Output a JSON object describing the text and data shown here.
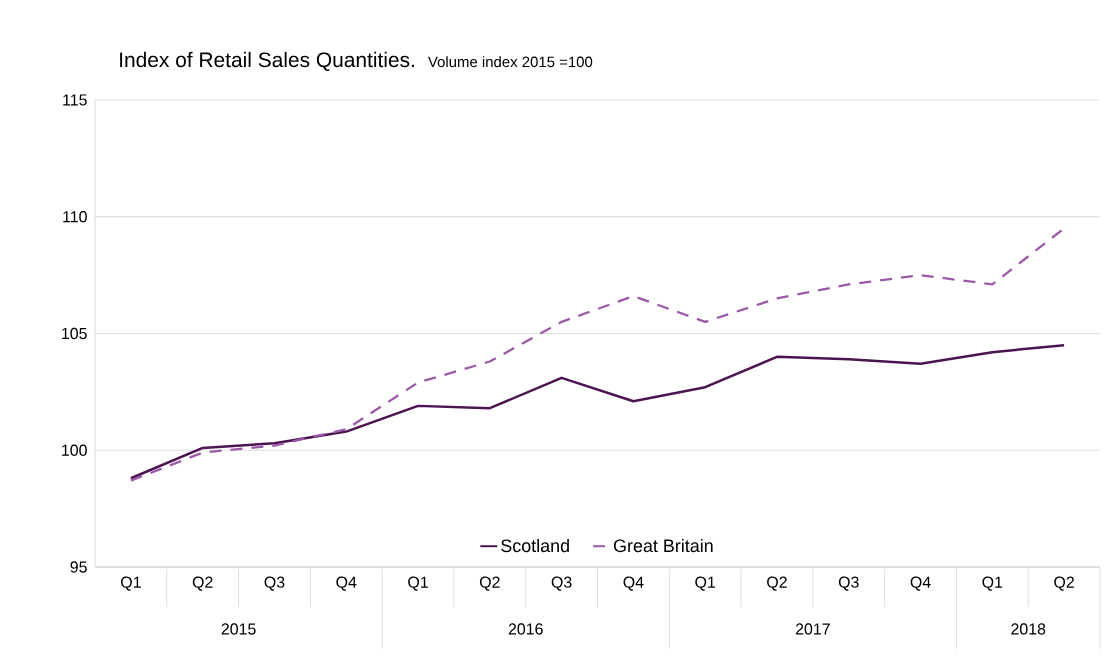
{
  "chart_data": {
    "type": "line",
    "title": "Index of Retail Sales Quantities.",
    "subtitle": "Volume index 2015 =100",
    "categories": [
      "Q1",
      "Q2",
      "Q3",
      "Q4",
      "Q1",
      "Q2",
      "Q3",
      "Q4",
      "Q1",
      "Q2",
      "Q3",
      "Q4",
      "Q1",
      "Q2"
    ],
    "annotations": [
      "2015",
      "2016",
      "2017",
      "2018"
    ],
    "series": [
      {
        "name": "Scotland",
        "color": "#4b1450",
        "line_style": "solid",
        "values": [
          98.8,
          100.1,
          100.3,
          100.8,
          101.9,
          101.8,
          103.1,
          102.1,
          102.7,
          104.0,
          103.9,
          103.7,
          104.2,
          104.5
        ]
      },
      {
        "name": "Great Britain",
        "color": "#9b59a8",
        "line_style": "dashed",
        "values": [
          98.7,
          99.9,
          100.2,
          100.9,
          102.9,
          103.8,
          105.5,
          106.6,
          105.5,
          106.5,
          107.1,
          107.5,
          107.1,
          109.5
        ]
      }
    ],
    "ylim": [
      95,
      115
    ],
    "yticks": [
      95,
      100,
      105,
      110,
      115
    ],
    "grid": "y",
    "legend": "bottom",
    "marker": "none"
  }
}
